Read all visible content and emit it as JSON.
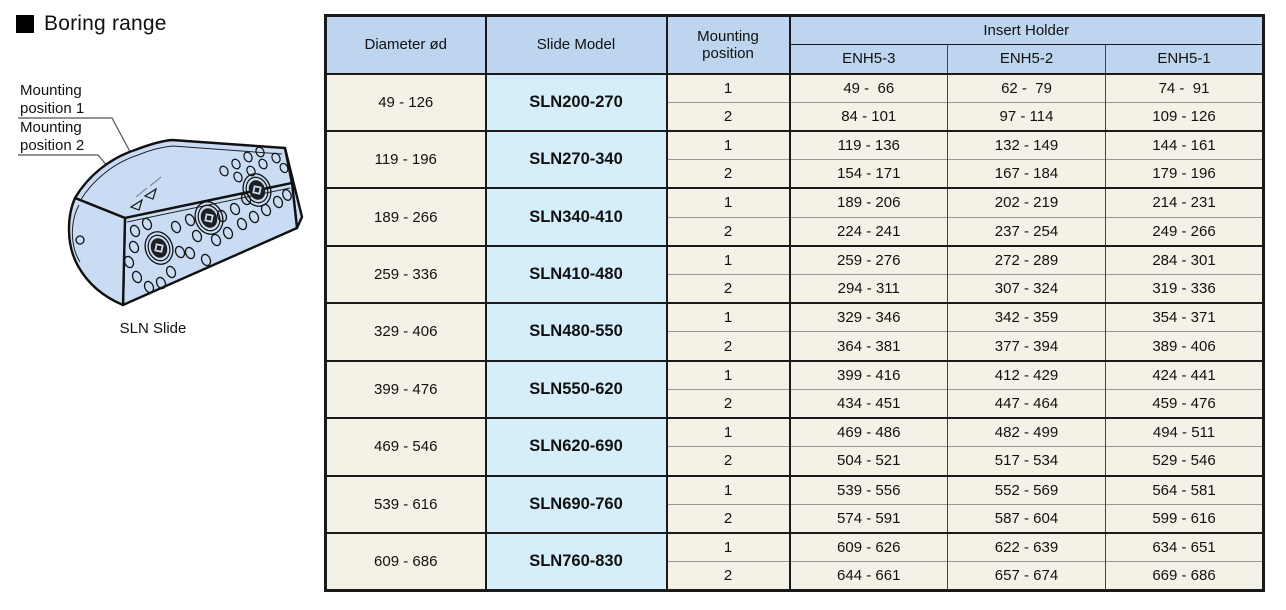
{
  "page": {
    "title": "Boring range",
    "caption": "SLN Slide",
    "labels": {
      "mounting1": "Mounting\nposition 1",
      "mounting2": "Mounting\nposition 2"
    }
  },
  "colors": {
    "header_blue": "#bdd5ee",
    "model_blue": "#d6edfa",
    "cell_cream": "#f4f1e6",
    "slide_fill": "#c9dcf4",
    "border_dark": "#1a1a1a"
  },
  "table": {
    "headers": {
      "diameter": "Diameter ød",
      "slide_model": "Slide Model",
      "mounting_position": "Mounting\nposition",
      "insert_holder": "Insert Holder",
      "enh_columns": [
        "ENH5-3",
        "ENH5-2",
        "ENH5-1"
      ]
    },
    "rows": [
      {
        "diameter": "49 - 126",
        "model": "SLN200-270",
        "positions": [
          {
            "position": "1",
            "enh5_3": "49 -  66",
            "enh5_2": "62 -  79",
            "enh5_1": "74 -  91"
          },
          {
            "position": "2",
            "enh5_3": "84 - 101",
            "enh5_2": "97 - 114",
            "enh5_1": "109 - 126"
          }
        ]
      },
      {
        "diameter": "119 - 196",
        "model": "SLN270-340",
        "positions": [
          {
            "position": "1",
            "enh5_3": "119 - 136",
            "enh5_2": "132 - 149",
            "enh5_1": "144 - 161"
          },
          {
            "position": "2",
            "enh5_3": "154 - 171",
            "enh5_2": "167 - 184",
            "enh5_1": "179 - 196"
          }
        ]
      },
      {
        "diameter": "189 - 266",
        "model": "SLN340-410",
        "positions": [
          {
            "position": "1",
            "enh5_3": "189 - 206",
            "enh5_2": "202 - 219",
            "enh5_1": "214 - 231"
          },
          {
            "position": "2",
            "enh5_3": "224 - 241",
            "enh5_2": "237 - 254",
            "enh5_1": "249 - 266"
          }
        ]
      },
      {
        "diameter": "259 - 336",
        "model": "SLN410-480",
        "positions": [
          {
            "position": "1",
            "enh5_3": "259 - 276",
            "enh5_2": "272 - 289",
            "enh5_1": "284 - 301"
          },
          {
            "position": "2",
            "enh5_3": "294 - 311",
            "enh5_2": "307 - 324",
            "enh5_1": "319 - 336"
          }
        ]
      },
      {
        "diameter": "329 - 406",
        "model": "SLN480-550",
        "positions": [
          {
            "position": "1",
            "enh5_3": "329 - 346",
            "enh5_2": "342 - 359",
            "enh5_1": "354 - 371"
          },
          {
            "position": "2",
            "enh5_3": "364 - 381",
            "enh5_2": "377 - 394",
            "enh5_1": "389 - 406"
          }
        ]
      },
      {
        "diameter": "399 - 476",
        "model": "SLN550-620",
        "positions": [
          {
            "position": "1",
            "enh5_3": "399 - 416",
            "enh5_2": "412 - 429",
            "enh5_1": "424 - 441"
          },
          {
            "position": "2",
            "enh5_3": "434 - 451",
            "enh5_2": "447 - 464",
            "enh5_1": "459 - 476"
          }
        ]
      },
      {
        "diameter": "469 - 546",
        "model": "SLN620-690",
        "positions": [
          {
            "position": "1",
            "enh5_3": "469 - 486",
            "enh5_2": "482 - 499",
            "enh5_1": "494 - 511"
          },
          {
            "position": "2",
            "enh5_3": "504 - 521",
            "enh5_2": "517 - 534",
            "enh5_1": "529 - 546"
          }
        ]
      },
      {
        "diameter": "539 - 616",
        "model": "SLN690-760",
        "positions": [
          {
            "position": "1",
            "enh5_3": "539 - 556",
            "enh5_2": "552 - 569",
            "enh5_1": "564 - 581"
          },
          {
            "position": "2",
            "enh5_3": "574 - 591",
            "enh5_2": "587 - 604",
            "enh5_1": "599 - 616"
          }
        ]
      },
      {
        "diameter": "609 - 686",
        "model": "SLN760-830",
        "positions": [
          {
            "position": "1",
            "enh5_3": "609 - 626",
            "enh5_2": "622 - 639",
            "enh5_1": "634 - 651"
          },
          {
            "position": "2",
            "enh5_3": "644 - 661",
            "enh5_2": "657 - 674",
            "enh5_1": "669 - 686"
          }
        ]
      }
    ]
  }
}
